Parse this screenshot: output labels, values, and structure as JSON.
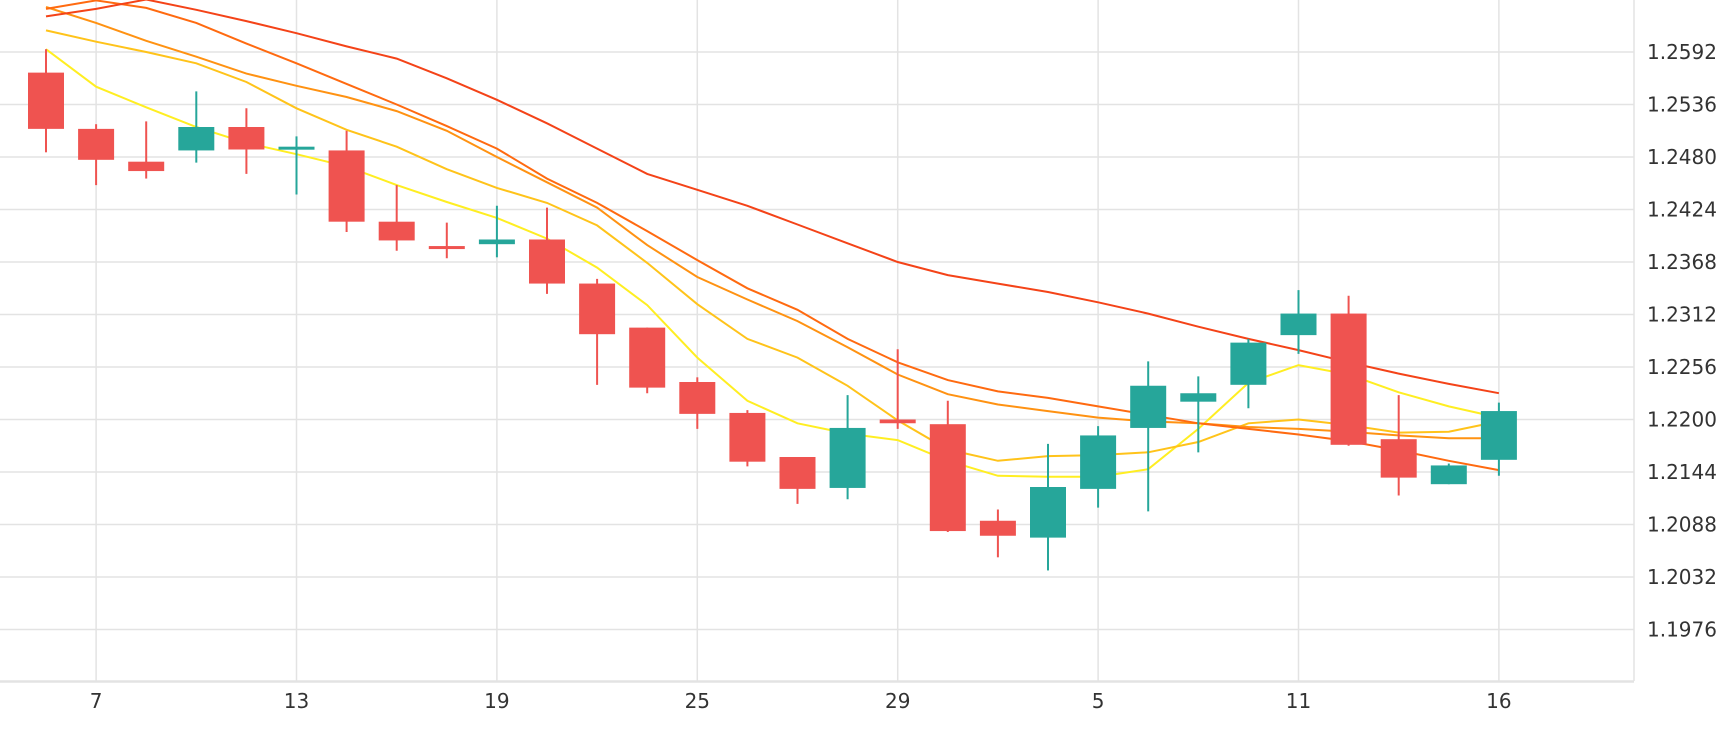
{
  "chart_data": {
    "type": "candlestick",
    "title": "",
    "xlabel": "",
    "ylabel": "",
    "ylim": [
      1.192,
      1.2648
    ],
    "grid": true,
    "legend": "none",
    "x_tick_labels": [
      {
        "index": 1,
        "label": "7"
      },
      {
        "index": 5,
        "label": "13"
      },
      {
        "index": 9,
        "label": "19"
      },
      {
        "index": 13,
        "label": "25"
      },
      {
        "index": 17,
        "label": "29"
      },
      {
        "index": 21,
        "label": "5"
      },
      {
        "index": 25,
        "label": "11"
      },
      {
        "index": 29,
        "label": "16"
      }
    ],
    "y_ticks": [
      1.1976,
      1.2032,
      1.2088,
      1.2144,
      1.22,
      1.2256,
      1.2312,
      1.2368,
      1.2424,
      1.248,
      1.2536,
      1.2592
    ],
    "y_tick_labels": [
      "1.1976",
      "1.2032",
      "1.2088",
      "1.2144",
      "1.2200",
      "1.2256",
      "1.2312",
      "1.2368",
      "1.2424",
      "1.2480",
      "1.2536",
      "1.2592"
    ],
    "candles": [
      {
        "open": 1.257,
        "high": 1.2595,
        "low": 1.2485,
        "close": 1.251
      },
      {
        "open": 1.251,
        "high": 1.2515,
        "low": 1.245,
        "close": 1.2477
      },
      {
        "open": 1.2475,
        "high": 1.2518,
        "low": 1.2457,
        "close": 1.2465
      },
      {
        "open": 1.2487,
        "high": 1.255,
        "low": 1.2474,
        "close": 1.2512
      },
      {
        "open": 1.2512,
        "high": 1.2532,
        "low": 1.2462,
        "close": 1.2488
      },
      {
        "open": 1.249,
        "high": 1.2502,
        "low": 1.244,
        "close": 1.2491
      },
      {
        "open": 1.2487,
        "high": 1.2508,
        "low": 1.24,
        "close": 1.2411
      },
      {
        "open": 1.2411,
        "high": 1.245,
        "low": 1.238,
        "close": 1.2391
      },
      {
        "open": 1.2385,
        "high": 1.241,
        "low": 1.2372,
        "close": 1.2384
      },
      {
        "open": 1.2387,
        "high": 1.2428,
        "low": 1.2373,
        "close": 1.2392
      },
      {
        "open": 1.2392,
        "high": 1.2426,
        "low": 1.2334,
        "close": 1.2345
      },
      {
        "open": 1.2345,
        "high": 1.235,
        "low": 1.2237,
        "close": 1.2291
      },
      {
        "open": 1.2298,
        "high": 1.2298,
        "low": 1.2228,
        "close": 1.2234
      },
      {
        "open": 1.224,
        "high": 1.2245,
        "low": 1.219,
        "close": 1.2206
      },
      {
        "open": 1.2207,
        "high": 1.221,
        "low": 1.215,
        "close": 1.2155
      },
      {
        "open": 1.216,
        "high": 1.216,
        "low": 1.211,
        "close": 1.2126
      },
      {
        "open": 1.2127,
        "high": 1.2226,
        "low": 1.2115,
        "close": 1.2191
      },
      {
        "open": 1.22,
        "high": 1.2275,
        "low": 1.219,
        "close": 1.2196
      },
      {
        "open": 1.2195,
        "high": 1.222,
        "low": 1.208,
        "close": 1.2081
      },
      {
        "open": 1.2092,
        "high": 1.2104,
        "low": 1.2053,
        "close": 1.2076
      },
      {
        "open": 1.2074,
        "high": 1.2174,
        "low": 1.2039,
        "close": 1.2128
      },
      {
        "open": 1.2126,
        "high": 1.2193,
        "low": 1.2106,
        "close": 1.2183
      },
      {
        "open": 1.2191,
        "high": 1.2262,
        "low": 1.2102,
        "close": 1.2236
      },
      {
        "open": 1.2219,
        "high": 1.2246,
        "low": 1.2165,
        "close": 1.2228
      },
      {
        "open": 1.2237,
        "high": 1.2286,
        "low": 1.2212,
        "close": 1.2282
      },
      {
        "open": 1.229,
        "high": 1.2338,
        "low": 1.227,
        "close": 1.2313
      },
      {
        "open": 1.2313,
        "high": 1.2332,
        "low": 1.2172,
        "close": 1.2173
      },
      {
        "open": 1.2179,
        "high": 1.2226,
        "low": 1.2119,
        "close": 1.2138
      },
      {
        "open": 1.2131,
        "high": 1.2153,
        "low": 1.2131,
        "close": 1.2151
      },
      {
        "open": 1.2157,
        "high": 1.2218,
        "low": 1.214,
        "close": 1.2209
      }
    ],
    "series": [
      {
        "type": "moving_average",
        "color": "#ffee22",
        "values": [
          1.2595,
          1.2555,
          1.2533,
          1.2512,
          1.2495,
          1.2483,
          1.247,
          1.245,
          1.2432,
          1.2415,
          1.2393,
          1.2362,
          1.2322,
          1.2266,
          1.222,
          1.2196,
          1.2185,
          1.2178,
          1.2156,
          1.214,
          1.2139,
          1.2139,
          1.2147,
          1.219,
          1.2239,
          1.2258,
          1.2248,
          1.2229,
          1.2214,
          1.2202
        ]
      },
      {
        "type": "moving_average",
        "color": "#ffc31a",
        "values": [
          1.2615,
          1.2603,
          1.2592,
          1.258,
          1.256,
          1.2532,
          1.2509,
          1.2491,
          1.2467,
          1.2447,
          1.2431,
          1.2407,
          1.2367,
          1.2323,
          1.2286,
          1.2266,
          1.2236,
          1.2199,
          1.2168,
          1.2156,
          1.2161,
          1.2162,
          1.2165,
          1.2176,
          1.2196,
          1.22,
          1.2194,
          1.2186,
          1.2187,
          1.2198
        ]
      },
      {
        "type": "moving_average",
        "color": "#ff9212",
        "values": [
          1.264,
          1.2623,
          1.2604,
          1.2587,
          1.2569,
          1.2556,
          1.2544,
          1.2529,
          1.2508,
          1.248,
          1.2453,
          1.2426,
          1.2386,
          1.2352,
          1.2328,
          1.2305,
          1.2277,
          1.2248,
          1.2227,
          1.2216,
          1.2209,
          1.2202,
          1.2198,
          1.2196,
          1.2192,
          1.219,
          1.2187,
          1.2183,
          1.218,
          1.218
        ]
      },
      {
        "type": "moving_average",
        "color": "#ff6a10",
        "values": [
          1.2638,
          1.2647,
          1.2639,
          1.2623,
          1.2601,
          1.258,
          1.2558,
          1.2536,
          1.2513,
          1.2489,
          1.2457,
          1.2431,
          1.2401,
          1.237,
          1.234,
          1.2317,
          1.2286,
          1.2261,
          1.2242,
          1.223,
          1.2223,
          1.2214,
          1.2205,
          1.2196,
          1.219,
          1.2184,
          1.2177,
          1.2167,
          1.2156,
          1.2146
        ]
      },
      {
        "type": "moving_average",
        "color": "#f44318",
        "values": [
          1.263,
          1.2638,
          1.2648,
          1.2637,
          1.2625,
          1.2612,
          1.2598,
          1.2585,
          1.2564,
          1.2541,
          1.2516,
          1.2489,
          1.2462,
          1.2445,
          1.2428,
          1.2408,
          1.2388,
          1.2368,
          1.2354,
          1.2345,
          1.2336,
          1.2325,
          1.2313,
          1.2299,
          1.2286,
          1.2274,
          1.2261,
          1.2249,
          1.2238,
          1.2228
        ]
      }
    ],
    "colors": {
      "up": "#26a69a",
      "down": "#ef5350",
      "grid": "#e3e3e3",
      "axis_text": "#333333"
    }
  }
}
